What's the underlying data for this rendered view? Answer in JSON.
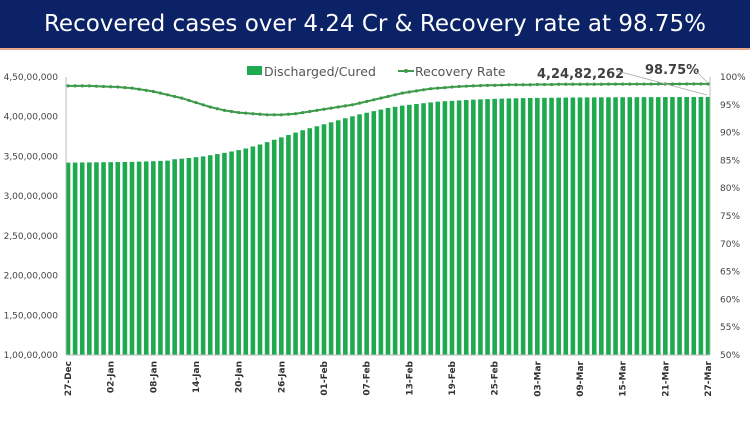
{
  "header": {
    "title": "Recovered cases over 4.24 Cr & Recovery rate at 98.75%"
  },
  "chart_data": {
    "type": "bar+line",
    "title": "Recovered cases over 4.24 Cr & Recovery rate at 98.75%",
    "x_tick_labels": [
      "27-Dec",
      "02-Jan",
      "08-Jan",
      "14-Jan",
      "20-Jan",
      "26-Jan",
      "01-Feb",
      "07-Feb",
      "13-Feb",
      "19-Feb",
      "25-Feb",
      "03-Mar",
      "09-Mar",
      "15-Mar",
      "21-Mar",
      "27-Mar"
    ],
    "x_range": [
      "27-Dec",
      "27-Mar"
    ],
    "y_left": {
      "range": [
        10000000,
        45000000
      ],
      "tick_labels": [
        "1,00,00,000",
        "1,50,00,000",
        "2,00,00,000",
        "2,50,00,000",
        "3,00,00,000",
        "3,50,00,000",
        "4,00,00,000",
        "4,50,00,000"
      ]
    },
    "y_right": {
      "range": [
        50,
        100
      ],
      "tick_labels": [
        "50%",
        "55%",
        "60%",
        "65%",
        "70%",
        "75%",
        "80%",
        "85%",
        "90%",
        "95%",
        "100%"
      ]
    },
    "legend": {
      "position": "top",
      "entries": [
        "Discharged/Cured",
        "Recovery Rate"
      ]
    },
    "colors": {
      "bars": "#1faa4f",
      "line": "#3c9a4a"
    },
    "series": [
      {
        "name": "Discharged/Cured",
        "type": "bar",
        "axis": "left",
        "values": [
          34220000,
          34230000,
          34240000,
          34250000,
          34260000,
          34270000,
          34280000,
          34290000,
          34300000,
          34320000,
          34340000,
          34370000,
          34400000,
          34430000,
          34470000,
          34650000,
          34720000,
          34810000,
          34900000,
          35000000,
          35150000,
          35300000,
          35450000,
          35620000,
          35800000,
          36000000,
          36250000,
          36500000,
          36800000,
          37100000,
          37400000,
          37700000,
          38000000,
          38300000,
          38550000,
          38800000,
          39050000,
          39300000,
          39550000,
          39800000,
          40050000,
          40300000,
          40500000,
          40700000,
          40900000,
          41100000,
          41250000,
          41400000,
          41500000,
          41600000,
          41700000,
          41800000,
          41900000,
          41950000,
          42000000,
          42050000,
          42100000,
          42150000,
          42190000,
          42220000,
          42250000,
          42280000,
          42300000,
          42320000,
          42340000,
          42360000,
          42370000,
          42380000,
          42390000,
          42400000,
          42410000,
          42420000,
          42425000,
          42430000,
          42435000,
          42440000,
          42445000,
          42450000,
          42453000,
          42456000,
          42459000,
          42462000,
          42465000,
          42468000,
          42471000,
          42473000,
          42475000,
          42477000,
          42479000,
          42481000,
          42482262
        ]
      },
      {
        "name": "Recovery Rate",
        "type": "line",
        "axis": "right",
        "values": [
          98.4,
          98.4,
          98.4,
          98.4,
          98.35,
          98.3,
          98.25,
          98.2,
          98.1,
          98.0,
          97.8,
          97.6,
          97.4,
          97.1,
          96.8,
          96.5,
          96.2,
          95.8,
          95.4,
          95.0,
          94.6,
          94.3,
          94.0,
          93.8,
          93.6,
          93.5,
          93.4,
          93.3,
          93.2,
          93.2,
          93.2,
          93.3,
          93.4,
          93.6,
          93.8,
          94.0,
          94.2,
          94.4,
          94.6,
          94.8,
          95.0,
          95.3,
          95.6,
          95.9,
          96.2,
          96.5,
          96.8,
          97.1,
          97.3,
          97.5,
          97.7,
          97.9,
          98.0,
          98.1,
          98.2,
          98.3,
          98.35,
          98.4,
          98.45,
          98.5,
          98.5,
          98.55,
          98.6,
          98.6,
          98.6,
          98.6,
          98.65,
          98.65,
          98.65,
          98.7,
          98.7,
          98.7,
          98.7,
          98.7,
          98.7,
          98.7,
          98.72,
          98.72,
          98.72,
          98.72,
          98.73,
          98.73,
          98.73,
          98.74,
          98.74,
          98.74,
          98.74,
          98.75,
          98.75,
          98.75,
          98.75
        ]
      }
    ],
    "annotations": [
      "4,24,82,262",
      "98.75%"
    ]
  }
}
